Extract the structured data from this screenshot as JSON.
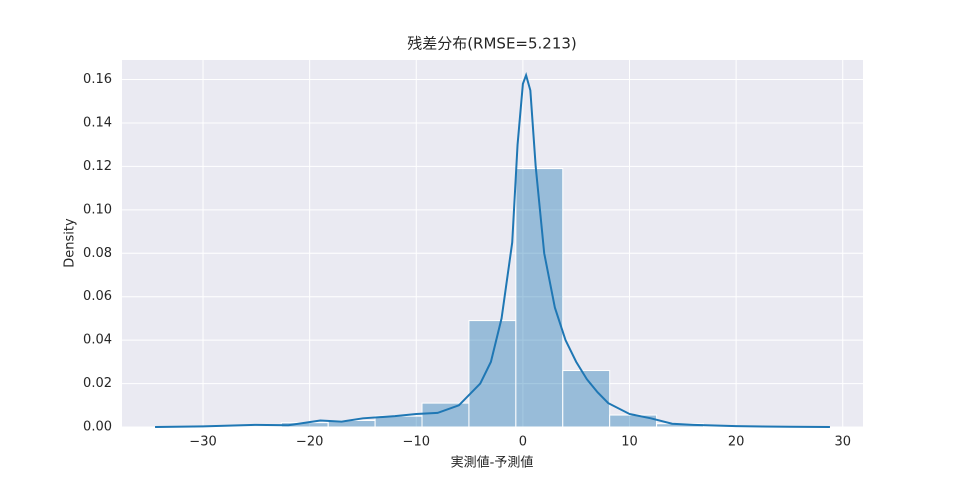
{
  "chart_data": {
    "type": "histogram",
    "title": "残差分布(RMSE=5.213)",
    "x_label": "実測値-予測値",
    "y_label": "Density",
    "bins": [
      -31.46,
      -27.06,
      -22.66,
      -18.26,
      -13.86,
      -9.46,
      -5.06,
      -0.66,
      3.74,
      8.14,
      12.54,
      16.94,
      21.34,
      25.74
    ],
    "values": [
      0.0002,
      0.0005,
      0.002,
      0.003,
      0.005,
      0.011,
      0.049,
      0.119,
      0.026,
      0.0055,
      0.0015,
      0.0005,
      0.0002
    ],
    "color": "#1f77b4",
    "kde": {
      "color": "#1f77b4",
      "x": [
        -34.5,
        -30,
        -25,
        -22,
        -19,
        -17,
        -15,
        -12,
        -10,
        -8,
        -6,
        -4,
        -3,
        -2,
        -1,
        -0.5,
        0,
        0.3,
        0.7,
        1.2,
        2,
        3,
        4,
        5,
        6,
        7,
        8,
        10,
        12,
        14,
        16,
        20,
        25,
        28.8
      ],
      "values": [
        0,
        0.0003,
        0.001,
        0.0008,
        0.003,
        0.0025,
        0.004,
        0.005,
        0.006,
        0.0065,
        0.01,
        0.02,
        0.03,
        0.05,
        0.085,
        0.13,
        0.158,
        0.162,
        0.155,
        0.12,
        0.08,
        0.055,
        0.04,
        0.03,
        0.022,
        0.016,
        0.011,
        0.006,
        0.004,
        0.0015,
        0.001,
        0.0004,
        0.0001,
        0
      ]
    },
    "xlim": [
      -37.6,
      31.9
    ],
    "ylim": [
      0,
      0.169
    ],
    "xticks": [
      {
        "value": -30,
        "label": "−30"
      },
      {
        "value": -20,
        "label": "−20"
      },
      {
        "value": -10,
        "label": "−10"
      },
      0,
      10,
      20,
      30
    ],
    "yticks": [
      {
        "value": 0,
        "label": "0.00"
      },
      {
        "value": 0.02,
        "label": "0.02"
      },
      {
        "value": 0.04,
        "label": "0.04"
      },
      {
        "value": 0.06,
        "label": "0.06"
      },
      {
        "value": 0.08,
        "label": "0.08"
      },
      {
        "value": 0.1,
        "label": "0.10"
      },
      {
        "value": 0.12,
        "label": "0.12"
      },
      {
        "value": 0.14,
        "label": "0.14"
      },
      {
        "value": 0.16,
        "label": "0.16"
      }
    ],
    "grid": true
  }
}
